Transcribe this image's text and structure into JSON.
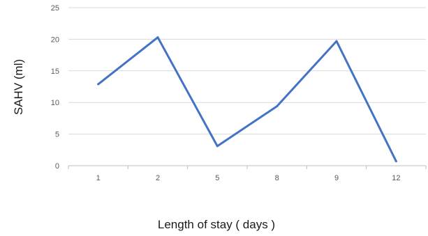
{
  "chart_data": {
    "type": "line",
    "categories": [
      "1",
      "2",
      "5",
      "8",
      "9",
      "12"
    ],
    "series": [
      {
        "values": [
          12.9,
          20.3,
          3.1,
          9.4,
          19.7,
          0.7
        ],
        "color": "#4472c4"
      }
    ],
    "xlabel": "Length of stay ( days )",
    "ylabel": "SAHV (ml)",
    "ylim": [
      0,
      25
    ],
    "yticks": [
      "0",
      "5",
      "10",
      "15",
      "20",
      "25"
    ],
    "grid": true,
    "legend": "none",
    "gridColor": "#d9d9d9",
    "axisColor": "#bfbfbf"
  }
}
